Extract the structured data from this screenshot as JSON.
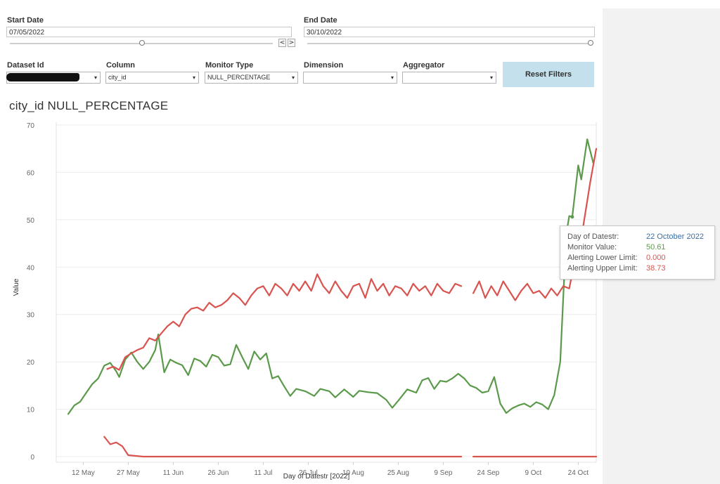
{
  "filters": {
    "start_date": {
      "label": "Start Date",
      "value": "07/05/2022"
    },
    "end_date": {
      "label": "End Date",
      "value": "30/10/2022"
    },
    "prev_symbol": "<",
    "next_symbol": ">",
    "dataset_id": {
      "label": "Dataset Id",
      "value": ""
    },
    "column": {
      "label": "Column",
      "value": "city_id"
    },
    "monitor_type": {
      "label": "Monitor Type",
      "value": "NULL_PERCENTAGE"
    },
    "dimension": {
      "label": "Dimension",
      "value": ""
    },
    "aggregator": {
      "label": "Aggregator",
      "value": ""
    },
    "dropdown_icon": "▾",
    "reset_label": "Reset Filters"
  },
  "title": "city_id  NULL_PERCENTAGE",
  "tooltip": {
    "rows": [
      {
        "label": "Day of Datestr:",
        "value": "22 October 2022",
        "color": "#3a6ea5"
      },
      {
        "label": "Monitor Value:",
        "value": "50.61",
        "color": "#5a9a4a"
      },
      {
        "label": "Alerting Lower Limit:",
        "value": "0.000",
        "color": "#d9534f"
      },
      {
        "label": "Alerting Upper Limit:",
        "value": "38.73",
        "color": "#d9534f"
      }
    ]
  },
  "chart_data": {
    "type": "line",
    "xlabel": "Day of Datestr [2022]",
    "ylabel": "Value",
    "ylim": [
      0,
      70
    ],
    "yticks": [
      0,
      10,
      20,
      30,
      40,
      50,
      60,
      70
    ],
    "xticks": [
      "12 May",
      "27 May",
      "11 Jun",
      "26 Jun",
      "11 Jul",
      "26 Jul",
      "10 Aug",
      "25 Aug",
      "9 Sep",
      "24 Sep",
      "9 Oct",
      "24 Oct"
    ],
    "xtick_dates": [
      "2022-05-12",
      "2022-05-27",
      "2022-06-11",
      "2022-06-26",
      "2022-07-11",
      "2022-07-26",
      "2022-08-10",
      "2022-08-25",
      "2022-09-09",
      "2022-09-24",
      "2022-10-09",
      "2022-10-24"
    ],
    "xlim": [
      "2022-05-03",
      "2022-10-30"
    ],
    "grid": true,
    "series": [
      {
        "color": "#5a9a4a",
        "points": [
          [
            "2022-05-07",
            9.0
          ],
          [
            "2022-05-09",
            10.8
          ],
          [
            "2022-05-11",
            11.6
          ],
          [
            "2022-05-13",
            13.5
          ],
          [
            "2022-05-15",
            15.3
          ],
          [
            "2022-05-17",
            16.5
          ],
          [
            "2022-05-19",
            19.2
          ],
          [
            "2022-05-21",
            19.8
          ],
          [
            "2022-05-23",
            18.0
          ],
          [
            "2022-05-24",
            16.8
          ],
          [
            "2022-05-26",
            20.5
          ],
          [
            "2022-05-28",
            22.0
          ],
          [
            "2022-05-30",
            20.0
          ],
          [
            "2022-06-01",
            18.5
          ],
          [
            "2022-06-03",
            20.0
          ],
          [
            "2022-06-05",
            22.5
          ],
          [
            "2022-06-06",
            25.8
          ],
          [
            "2022-06-08",
            17.8
          ],
          [
            "2022-06-10",
            20.5
          ],
          [
            "2022-06-12",
            19.8
          ],
          [
            "2022-06-14",
            19.3
          ],
          [
            "2022-06-16",
            17.2
          ],
          [
            "2022-06-18",
            20.7
          ],
          [
            "2022-06-20",
            20.2
          ],
          [
            "2022-06-22",
            19.0
          ],
          [
            "2022-06-24",
            21.5
          ],
          [
            "2022-06-26",
            21.0
          ],
          [
            "2022-06-28",
            19.2
          ],
          [
            "2022-06-30",
            19.5
          ],
          [
            "2022-07-02",
            23.6
          ],
          [
            "2022-07-04",
            21.0
          ],
          [
            "2022-07-06",
            18.5
          ],
          [
            "2022-07-08",
            22.2
          ],
          [
            "2022-07-10",
            20.5
          ],
          [
            "2022-07-12",
            21.8
          ],
          [
            "2022-07-14",
            16.5
          ],
          [
            "2022-07-16",
            17.0
          ],
          [
            "2022-07-18",
            14.8
          ],
          [
            "2022-07-20",
            12.8
          ],
          [
            "2022-07-22",
            14.3
          ],
          [
            "2022-07-25",
            13.8
          ],
          [
            "2022-07-28",
            12.8
          ],
          [
            "2022-07-30",
            14.3
          ],
          [
            "2022-08-02",
            13.8
          ],
          [
            "2022-08-04",
            12.5
          ],
          [
            "2022-08-07",
            14.2
          ],
          [
            "2022-08-10",
            12.6
          ],
          [
            "2022-08-12",
            13.9
          ],
          [
            "2022-08-15",
            13.6
          ],
          [
            "2022-08-18",
            13.4
          ],
          [
            "2022-08-21",
            12.0
          ],
          [
            "2022-08-23",
            10.3
          ],
          [
            "2022-08-25",
            11.8
          ],
          [
            "2022-08-28",
            14.2
          ],
          [
            "2022-08-31",
            13.5
          ],
          [
            "2022-09-02",
            16.1
          ],
          [
            "2022-09-04",
            16.6
          ],
          [
            "2022-09-06",
            14.3
          ],
          [
            "2022-09-08",
            16.0
          ],
          [
            "2022-09-10",
            15.8
          ],
          [
            "2022-09-12",
            16.5
          ],
          [
            "2022-09-14",
            17.5
          ],
          [
            "2022-09-16",
            16.5
          ],
          [
            "2022-09-18",
            15.0
          ],
          [
            "2022-09-20",
            14.5
          ],
          [
            "2022-09-22",
            13.5
          ],
          [
            "2022-09-24",
            13.8
          ],
          [
            "2022-09-26",
            16.8
          ],
          [
            "2022-09-28",
            11.2
          ],
          [
            "2022-09-30",
            9.2
          ],
          [
            "2022-10-02",
            10.2
          ],
          [
            "2022-10-04",
            10.8
          ],
          [
            "2022-10-06",
            11.2
          ],
          [
            "2022-10-08",
            10.5
          ],
          [
            "2022-10-10",
            11.5
          ],
          [
            "2022-10-12",
            11.0
          ],
          [
            "2022-10-14",
            10.0
          ],
          [
            "2022-10-16",
            13.0
          ],
          [
            "2022-10-18",
            20.0
          ],
          [
            "2022-10-20",
            47.0
          ],
          [
            "2022-10-21",
            50.8
          ],
          [
            "2022-10-22",
            50.61
          ],
          [
            "2022-10-24",
            61.5
          ],
          [
            "2022-10-25",
            58.5
          ],
          [
            "2022-10-27",
            67.0
          ],
          [
            "2022-10-29",
            62.0
          ]
        ]
      },
      {
        "color": "#d9534f",
        "points": [
          [
            "2022-05-20",
            18.5
          ],
          [
            "2022-05-22",
            19.0
          ],
          [
            "2022-05-24",
            18.3
          ],
          [
            "2022-05-26",
            21.0
          ],
          [
            "2022-05-28",
            21.8
          ],
          [
            "2022-05-30",
            22.5
          ],
          [
            "2022-06-01",
            23.0
          ],
          [
            "2022-06-03",
            25.0
          ],
          [
            "2022-06-05",
            24.5
          ],
          [
            "2022-06-07",
            26.0
          ],
          [
            "2022-06-09",
            27.5
          ],
          [
            "2022-06-11",
            28.5
          ],
          [
            "2022-06-13",
            27.5
          ],
          [
            "2022-06-15",
            30.0
          ],
          [
            "2022-06-17",
            31.2
          ],
          [
            "2022-06-19",
            31.5
          ],
          [
            "2022-06-21",
            30.8
          ],
          [
            "2022-06-23",
            32.5
          ],
          [
            "2022-06-25",
            31.5
          ],
          [
            "2022-06-27",
            32.0
          ],
          [
            "2022-06-29",
            33.0
          ],
          [
            "2022-07-01",
            34.5
          ],
          [
            "2022-07-03",
            33.5
          ],
          [
            "2022-07-05",
            32.0
          ],
          [
            "2022-07-07",
            34.0
          ],
          [
            "2022-07-09",
            35.5
          ],
          [
            "2022-07-11",
            36.0
          ],
          [
            "2022-07-13",
            34.0
          ],
          [
            "2022-07-15",
            36.5
          ],
          [
            "2022-07-17",
            35.5
          ],
          [
            "2022-07-19",
            34.0
          ],
          [
            "2022-07-21",
            36.5
          ],
          [
            "2022-07-23",
            35.0
          ],
          [
            "2022-07-25",
            37.0
          ],
          [
            "2022-07-27",
            35.0
          ],
          [
            "2022-07-29",
            38.5
          ],
          [
            "2022-07-31",
            36.0
          ],
          [
            "2022-08-02",
            34.5
          ],
          [
            "2022-08-04",
            37.0
          ],
          [
            "2022-08-06",
            35.0
          ],
          [
            "2022-08-08",
            33.5
          ],
          [
            "2022-08-10",
            36.0
          ],
          [
            "2022-08-12",
            36.5
          ],
          [
            "2022-08-14",
            33.5
          ],
          [
            "2022-08-16",
            37.5
          ],
          [
            "2022-08-18",
            35.0
          ],
          [
            "2022-08-20",
            36.5
          ],
          [
            "2022-08-22",
            34.0
          ],
          [
            "2022-08-24",
            36.0
          ],
          [
            "2022-08-26",
            35.5
          ],
          [
            "2022-08-28",
            34.0
          ],
          [
            "2022-08-30",
            36.5
          ],
          [
            "2022-09-01",
            35.0
          ],
          [
            "2022-09-03",
            36.0
          ],
          [
            "2022-09-05",
            34.0
          ],
          [
            "2022-09-07",
            36.5
          ],
          [
            "2022-09-09",
            35.0
          ],
          [
            "2022-09-11",
            34.5
          ],
          [
            "2022-09-13",
            36.5
          ],
          [
            "2022-09-15",
            36.0
          ],
          [
            null,
            null
          ],
          [
            "2022-09-19",
            34.5
          ],
          [
            "2022-09-21",
            37.0
          ],
          [
            "2022-09-23",
            33.5
          ],
          [
            "2022-09-25",
            36.0
          ],
          [
            "2022-09-27",
            34.0
          ],
          [
            "2022-09-29",
            37.0
          ],
          [
            "2022-10-01",
            35.0
          ],
          [
            "2022-10-03",
            33.0
          ],
          [
            "2022-10-05",
            35.0
          ],
          [
            "2022-10-07",
            36.5
          ],
          [
            "2022-10-09",
            34.5
          ],
          [
            "2022-10-11",
            35.0
          ],
          [
            "2022-10-13",
            33.5
          ],
          [
            "2022-10-15",
            35.5
          ],
          [
            "2022-10-17",
            34.0
          ],
          [
            "2022-10-19",
            36.0
          ],
          [
            "2022-10-21",
            35.5
          ],
          [
            "2022-10-22",
            38.73
          ],
          [
            "2022-10-24",
            42.0
          ],
          [
            "2022-10-26",
            50.0
          ],
          [
            "2022-10-28",
            58.0
          ],
          [
            "2022-10-30",
            65.0
          ]
        ]
      },
      {
        "color": "#d9534f",
        "points": [
          [
            "2022-05-19",
            4.2
          ],
          [
            "2022-05-21",
            2.6
          ],
          [
            "2022-05-23",
            3.0
          ],
          [
            "2022-05-25",
            2.2
          ],
          [
            "2022-05-27",
            0.3
          ],
          [
            "2022-06-01",
            0.0
          ],
          [
            "2022-09-15",
            0.0
          ],
          [
            null,
            null
          ],
          [
            "2022-09-19",
            0.0
          ],
          [
            "2022-10-30",
            0.0
          ]
        ]
      }
    ]
  }
}
